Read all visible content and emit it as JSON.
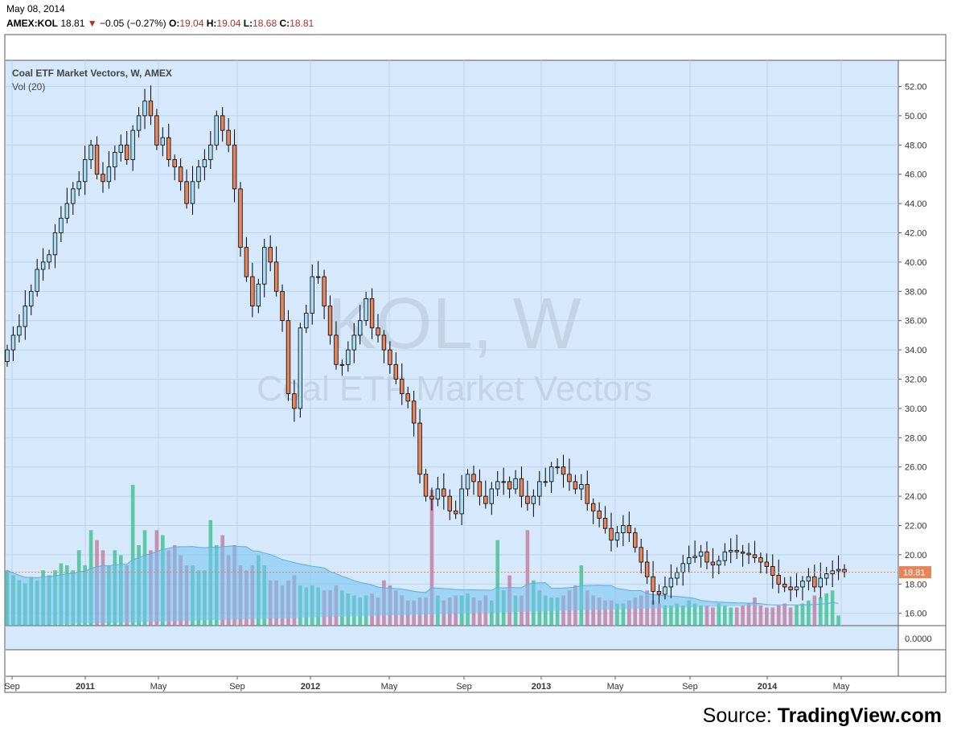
{
  "header": {
    "date": "May 08, 2014",
    "symbol": "AMEX:KOL",
    "price": "18.81",
    "change_arrow": "▼",
    "change": "−0.05 (−0.27%)",
    "open_label": "O:",
    "open": "19.04",
    "high_label": "H:",
    "high": "19.04",
    "low_label": "L:",
    "low": "18.68",
    "close_label": "C:",
    "close": "18.81"
  },
  "legend": {
    "title": "Coal ETF Market Vectors, W, AMEX",
    "volume": "Vol (20)"
  },
  "watermark": {
    "line1": "KOL, W",
    "line2": "Coal ETF Market Vectors"
  },
  "source": {
    "prefix": "Source: ",
    "brand": "TradingView.com"
  },
  "colors": {
    "background": "#d6e8fb",
    "up": "#a9dcf0",
    "down": "#e8845a",
    "wick": "#000000",
    "vol_up": "#3dbf8f",
    "vol_down": "#c27a9d",
    "vol_ma": "#72c2f2",
    "price_line": "#e8845a"
  },
  "chart_data": {
    "type": "candlestick",
    "interval": "weekly",
    "price_axis": {
      "min": 15,
      "max": 53,
      "ticks": [
        "52.00",
        "50.00",
        "48.00",
        "46.00",
        "44.00",
        "42.00",
        "40.00",
        "38.00",
        "36.00",
        "34.00",
        "32.00",
        "30.00",
        "28.00",
        "26.00",
        "24.00",
        "22.00",
        "20.00",
        "18.00",
        "16.00"
      ]
    },
    "volume_axis": {
      "ticks": [
        "0.0000"
      ]
    },
    "x_labels": [
      "Sep",
      "2011",
      "May",
      "Sep",
      "2012",
      "May",
      "Sep",
      "2013",
      "May",
      "Sep",
      "2014",
      "May"
    ],
    "last_price": "18.81",
    "close_series": [
      34,
      35,
      35.6,
      37,
      38,
      39.5,
      40,
      40.5,
      42,
      43,
      44,
      45,
      45.5,
      47,
      48,
      46,
      45.5,
      46.5,
      47.5,
      48,
      47,
      49,
      50,
      51,
      50,
      48,
      48.5,
      47,
      46.5,
      45.5,
      44,
      45.5,
      46.5,
      47,
      48,
      50,
      49,
      48,
      45,
      41,
      39,
      37,
      38.5,
      41,
      40,
      38,
      36,
      31,
      30,
      35.5,
      36.5,
      39,
      39,
      37,
      35,
      33,
      33,
      34,
      35,
      36,
      37.5,
      35.5,
      35,
      34,
      33,
      32,
      31,
      30.5,
      29,
      25.5,
      24,
      23.8,
      24.5,
      24,
      23,
      22.8,
      24.5,
      25.5,
      25,
      24,
      23.5,
      24.5,
      25,
      25,
      24.5,
      25.2,
      24,
      23.5,
      24,
      25,
      25,
      26,
      26,
      25.5,
      25,
      24.5,
      24.8,
      23.5,
      23,
      22.5,
      21.8,
      21,
      21.5,
      22,
      21.5,
      20.5,
      19.5,
      18.5,
      17.5,
      17.3,
      17.8,
      18.4,
      18.8,
      19.4,
      19.8,
      19.9,
      20.2,
      19.5,
      19.3,
      19.6,
      20.2,
      20.3,
      20.2,
      20.1,
      20.0,
      19.8,
      19.5,
      19.2,
      18.6,
      18.0,
      17.8,
      17.6,
      17.8,
      18.2,
      18.5,
      17.8,
      18.4,
      18.7,
      18.9,
      19.0,
      18.8
    ],
    "volume_ratio": [
      0.55,
      0.5,
      0.45,
      0.42,
      0.48,
      0.45,
      0.55,
      0.5,
      0.55,
      0.62,
      0.6,
      0.55,
      0.75,
      0.6,
      0.95,
      0.85,
      0.75,
      0.6,
      0.75,
      0.7,
      0.6,
      1.4,
      0.8,
      0.95,
      0.75,
      0.95,
      0.9,
      0.75,
      0.8,
      0.7,
      0.6,
      0.6,
      0.55,
      0.55,
      1.05,
      0.8,
      0.9,
      0.7,
      0.8,
      0.6,
      0.55,
      0.6,
      0.7,
      0.6,
      0.45,
      0.45,
      0.4,
      0.45,
      0.5,
      0.4,
      0.38,
      0.4,
      0.38,
      0.35,
      0.35,
      0.4,
      0.35,
      0.32,
      0.3,
      0.28,
      0.3,
      0.32,
      0.28,
      0.45,
      0.4,
      0.35,
      0.3,
      0.25,
      0.25,
      0.28,
      0.28,
      1.35,
      0.3,
      0.25,
      0.28,
      0.3,
      0.3,
      0.32,
      0.28,
      0.25,
      0.3,
      0.25,
      0.85,
      0.35,
      0.5,
      0.3,
      0.3,
      0.95,
      0.45,
      0.35,
      0.3,
      0.28,
      0.28,
      0.3,
      0.35,
      0.4,
      0.6,
      0.35,
      0.3,
      0.28,
      0.25,
      0.25,
      0.22,
      0.22,
      0.25,
      0.28,
      0.3,
      0.35,
      0.25,
      0.22,
      0.2,
      0.2,
      0.22,
      0.2,
      0.25,
      0.22,
      0.2,
      0.2,
      0.18,
      0.22,
      0.2,
      0.18,
      0.18,
      0.2,
      0.22,
      0.28,
      0.2,
      0.18,
      0.18,
      0.2,
      0.22,
      0.18,
      0.2,
      0.22,
      0.25,
      0.3,
      0.28,
      0.32,
      0.35,
      0.1
    ]
  }
}
